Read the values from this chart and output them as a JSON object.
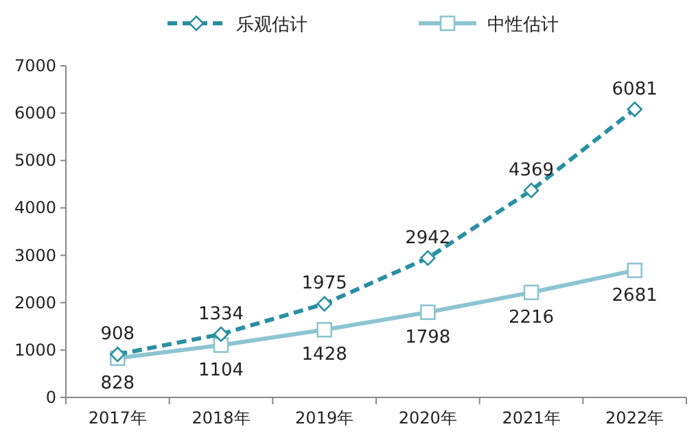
{
  "chart_data": {
    "type": "line",
    "categories": [
      "2017年",
      "2018年",
      "2019年",
      "2020年",
      "2021年",
      "2022年"
    ],
    "series": [
      {
        "name": "乐观估计",
        "color": "#2a8fa3",
        "values": [
          908,
          1334,
          1975,
          2942,
          4369,
          6081
        ],
        "marker": "diamond",
        "line_style": "dashed"
      },
      {
        "name": "中性估计",
        "color": "#8cc4d2",
        "values": [
          828,
          1104,
          1428,
          1798,
          2216,
          2681
        ],
        "marker": "square",
        "line_style": "solid"
      }
    ],
    "ylim": [
      0,
      7000
    ],
    "yticks": [
      0,
      1000,
      2000,
      3000,
      4000,
      5000,
      6000,
      7000
    ],
    "data_labels": true,
    "legend": "top",
    "grid": false
  }
}
